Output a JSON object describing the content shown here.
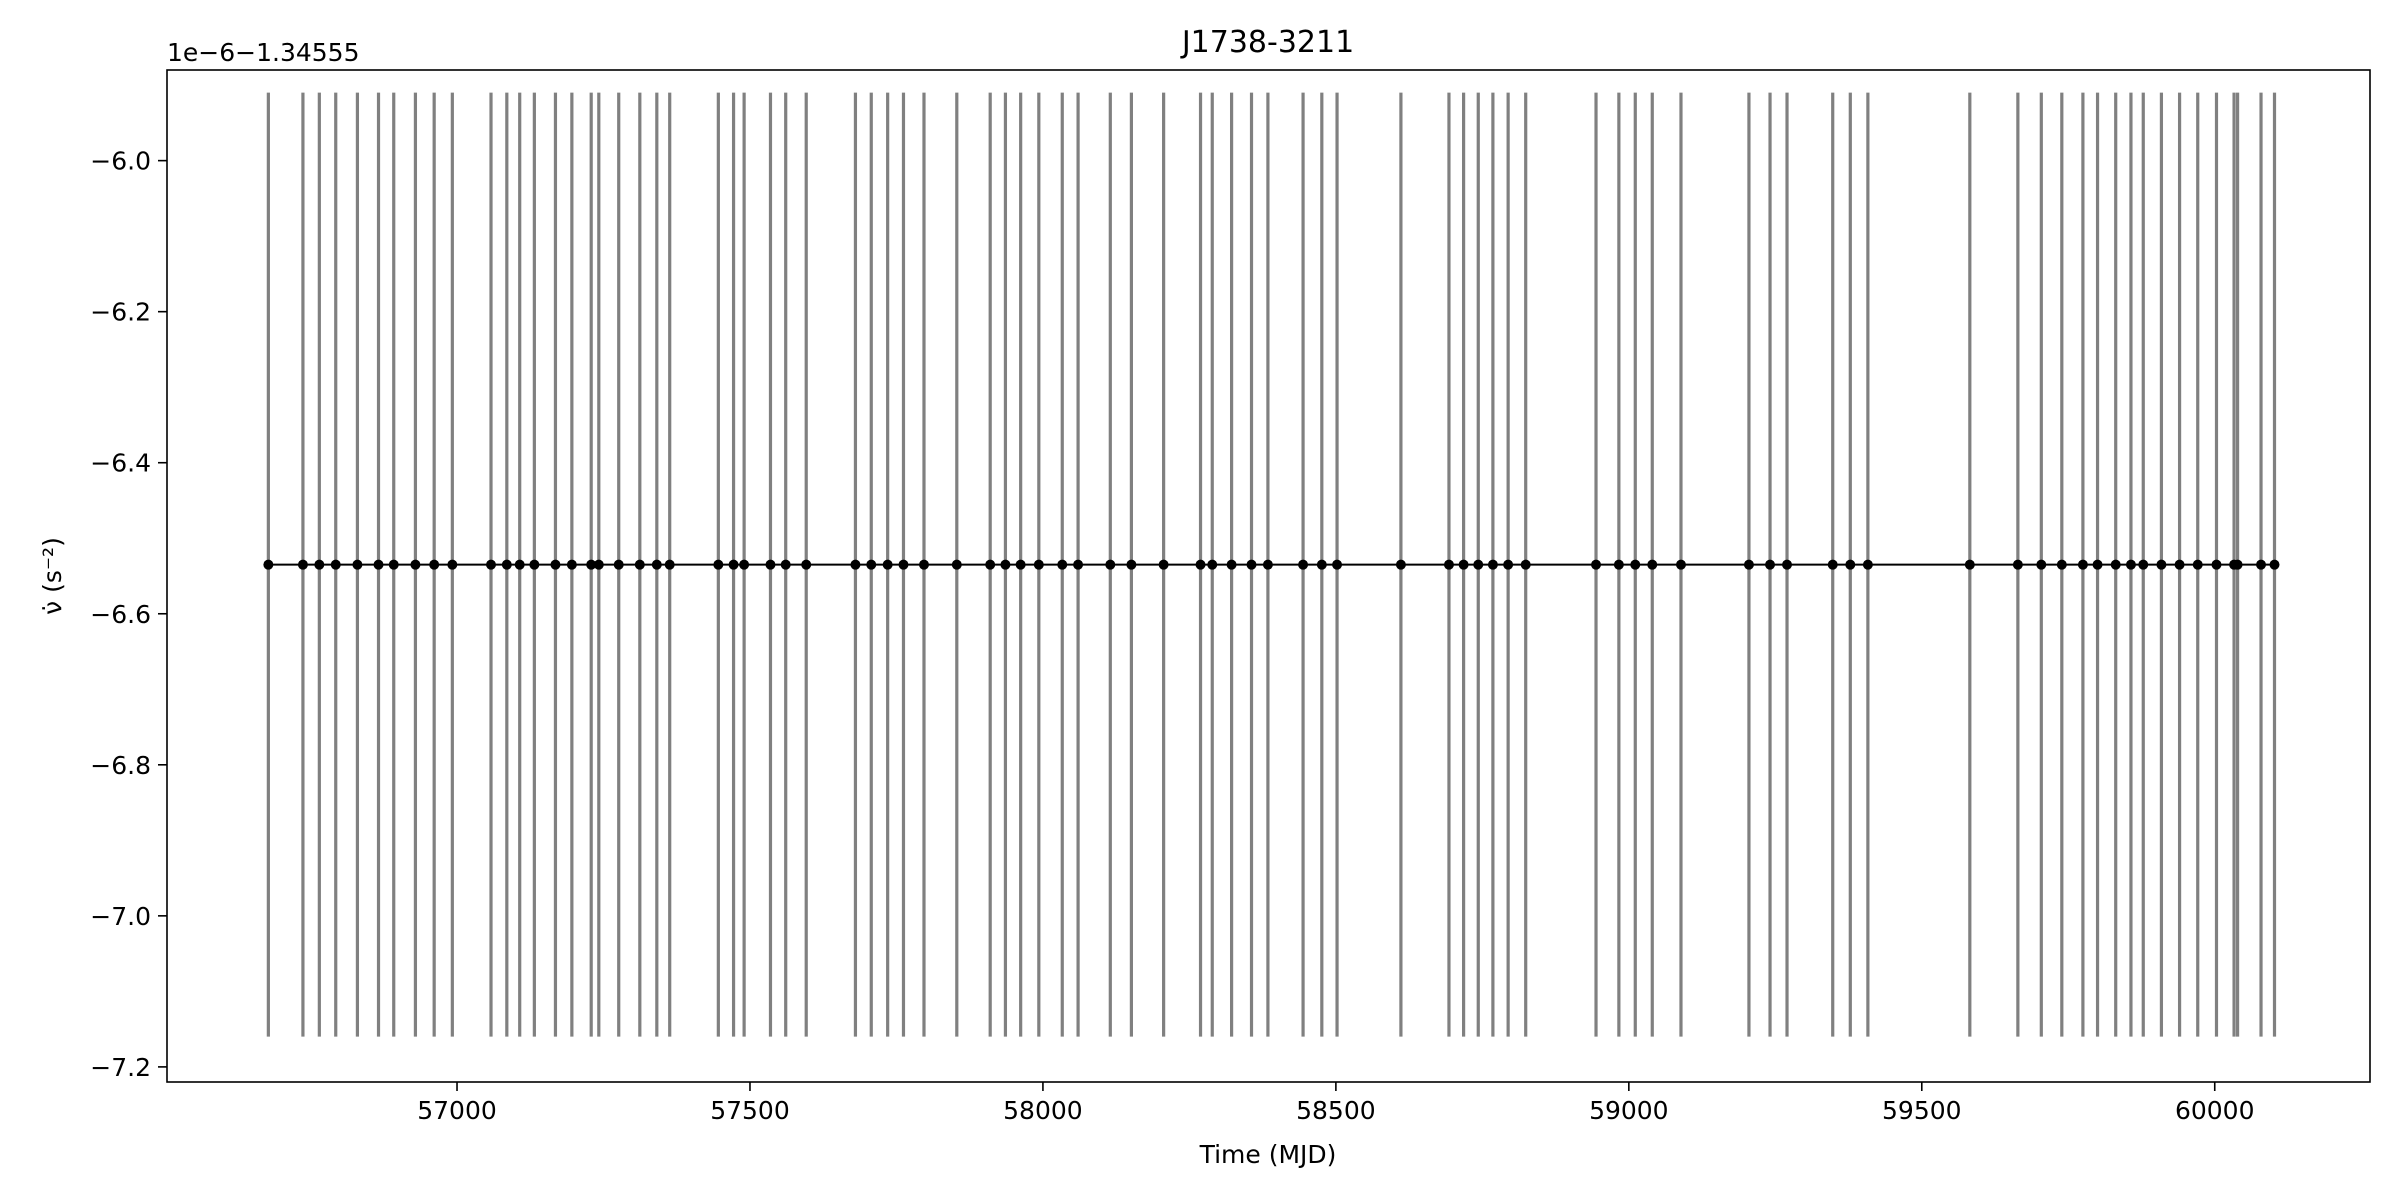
{
  "chart_data": {
    "type": "scatter",
    "title": "J1738-3211",
    "xlabel": "Time (MJD)",
    "ylabel": "ν̇ (s⁻²)",
    "offset_text": "1e−6−1.34555",
    "xlim": [
      56505,
      60265
    ],
    "ylim": [
      -7.22,
      -5.88
    ],
    "xticks": [
      57000,
      57500,
      58000,
      58500,
      59000,
      59500,
      60000
    ],
    "xtick_labels": [
      "57000",
      "57500",
      "58000",
      "58500",
      "59000",
      "59500",
      "60000"
    ],
    "yticks": [
      -7.2,
      -7.0,
      -6.8,
      -6.6,
      -6.4,
      -6.2,
      -6.0
    ],
    "ytick_labels": [
      "−7.2",
      "−7.0",
      "−6.8",
      "−6.6",
      "−6.4",
      "−6.2",
      "−6.0"
    ],
    "grid": false,
    "marker_color": "#000000",
    "line_color": "#000000",
    "errorbar_color": "#808080",
    "series": [
      {
        "x": [
          56678,
          56737,
          56765,
          56793,
          56830,
          56866,
          56892,
          56929,
          56961,
          56992,
          57058,
          57085,
          57107,
          57132,
          57168,
          57196,
          57229,
          57242,
          57276,
          57312,
          57341,
          57363,
          57446,
          57472,
          57490,
          57535,
          57561,
          57596,
          57680,
          57707,
          57735,
          57762,
          57797,
          57853,
          57910,
          57936,
          57962,
          57993,
          58033,
          58060,
          58115,
          58151,
          58206,
          58269,
          58289,
          58322,
          58356,
          58384,
          58444,
          58476,
          58502,
          58611,
          58693,
          58718,
          58743,
          58768,
          58794,
          58824,
          58944,
          58983,
          59011,
          59040,
          59089,
          59205,
          59241,
          59270,
          59348,
          59378,
          59408,
          59582,
          59664,
          59704,
          59739,
          59775,
          59800,
          59831,
          59857,
          59878,
          59909,
          59940,
          59971,
          60003,
          60033,
          60039,
          60079,
          60102
        ],
        "y": [
          -6.535,
          -6.535,
          -6.535,
          -6.535,
          -6.535,
          -6.535,
          -6.535,
          -6.535,
          -6.535,
          -6.535,
          -6.535,
          -6.535,
          -6.535,
          -6.535,
          -6.535,
          -6.535,
          -6.535,
          -6.535,
          -6.535,
          -6.535,
          -6.535,
          -6.535,
          -6.535,
          -6.535,
          -6.535,
          -6.535,
          -6.535,
          -6.535,
          -6.535,
          -6.535,
          -6.535,
          -6.535,
          -6.535,
          -6.535,
          -6.535,
          -6.535,
          -6.535,
          -6.535,
          -6.535,
          -6.535,
          -6.535,
          -6.535,
          -6.535,
          -6.535,
          -6.535,
          -6.535,
          -6.535,
          -6.535,
          -6.535,
          -6.535,
          -6.535,
          -6.535,
          -6.535,
          -6.535,
          -6.535,
          -6.535,
          -6.535,
          -6.535,
          -6.535,
          -6.535,
          -6.535,
          -6.535,
          -6.535,
          -6.535,
          -6.535,
          -6.535,
          -6.535,
          -6.535,
          -6.535,
          -6.535,
          -6.535,
          -6.535,
          -6.535,
          -6.535,
          -6.535,
          -6.535,
          -6.535,
          -6.535,
          -6.535,
          -6.535,
          -6.535,
          -6.535,
          -6.535,
          -6.535,
          -6.535,
          -6.535
        ],
        "yerr_low": -7.16,
        "yerr_high": -5.91
      }
    ]
  }
}
